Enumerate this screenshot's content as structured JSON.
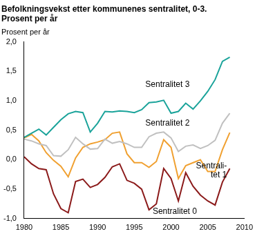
{
  "chart_data": {
    "type": "line",
    "title": [
      "Befolkningsvekst etter kommunenes sentralitet, 0-3.",
      "Prosent per år"
    ],
    "y_label": "Prosent per år",
    "x": [
      1980,
      1981,
      1982,
      1983,
      1984,
      1985,
      1986,
      1987,
      1988,
      1989,
      1990,
      1991,
      1992,
      1993,
      1994,
      1995,
      1996,
      1997,
      1998,
      1999,
      2000,
      2001,
      2002,
      2003,
      2004,
      2005,
      2006,
      2007,
      2008
    ],
    "series": [
      {
        "name": "Sentralitet 3",
        "color": "#1aa39a",
        "values": [
          0.38,
          0.45,
          0.52,
          0.42,
          0.55,
          0.68,
          0.78,
          0.82,
          0.8,
          0.47,
          0.62,
          0.82,
          0.81,
          0.83,
          0.82,
          0.8,
          0.85,
          0.97,
          0.98,
          1.01,
          0.79,
          0.82,
          0.96,
          0.86,
          1.0,
          1.16,
          1.36,
          1.67,
          1.74
        ]
      },
      {
        "name": "Sentralitet 2",
        "color": "#c0c0c0",
        "values": [
          0.35,
          0.32,
          0.27,
          0.24,
          0.07,
          0.06,
          0.17,
          0.38,
          0.27,
          0.18,
          0.19,
          0.35,
          0.28,
          0.31,
          0.27,
          0.21,
          0.21,
          0.39,
          0.45,
          0.47,
          0.37,
          0.14,
          0.23,
          0.25,
          0.19,
          0.24,
          0.33,
          0.62,
          0.79
        ]
      },
      {
        "name": "Sentrali-tet 1",
        "color": "#f0a030",
        "values": [
          0.37,
          0.43,
          0.32,
          0.12,
          -0.01,
          -0.11,
          -0.29,
          0.03,
          0.21,
          0.27,
          0.3,
          0.34,
          0.45,
          0.47,
          0.1,
          -0.05,
          -0.05,
          -0.13,
          -0.03,
          0.34,
          0.21,
          -0.32,
          -0.1,
          -0.05,
          0.0,
          -0.2,
          -0.2,
          0.17,
          0.46
        ]
      },
      {
        "name": "Sentralitet 0",
        "color": "#8b1a1a",
        "values": [
          0.05,
          -0.07,
          -0.15,
          -0.17,
          -0.58,
          -0.83,
          -0.9,
          -0.37,
          -0.33,
          -0.47,
          -0.42,
          -0.3,
          -0.12,
          -0.07,
          -0.35,
          -0.4,
          -0.5,
          -0.85,
          -0.75,
          -0.15,
          -0.32,
          -0.7,
          -0.22,
          -0.45,
          -0.6,
          -0.7,
          -0.77,
          -0.38,
          -0.15
        ]
      }
    ],
    "xlim": [
      1980,
      2010
    ],
    "xticks": [
      1980,
      1985,
      1990,
      1995,
      2000,
      2005,
      2010
    ],
    "ylim": [
      -1.0,
      2.0
    ],
    "yticks": [
      {
        "value": -1.0,
        "label": "-1,0"
      },
      {
        "value": -0.5,
        "label": "-0,5"
      },
      {
        "value": 0.0,
        "label": "0,0"
      },
      {
        "value": 0.5,
        "label": "0,5"
      },
      {
        "value": 1.0,
        "label": "1,0"
      },
      {
        "value": 1.5,
        "label": "1,5"
      },
      {
        "value": 2.0,
        "label": "2,0"
      }
    ],
    "grid": false,
    "legend": "none"
  }
}
